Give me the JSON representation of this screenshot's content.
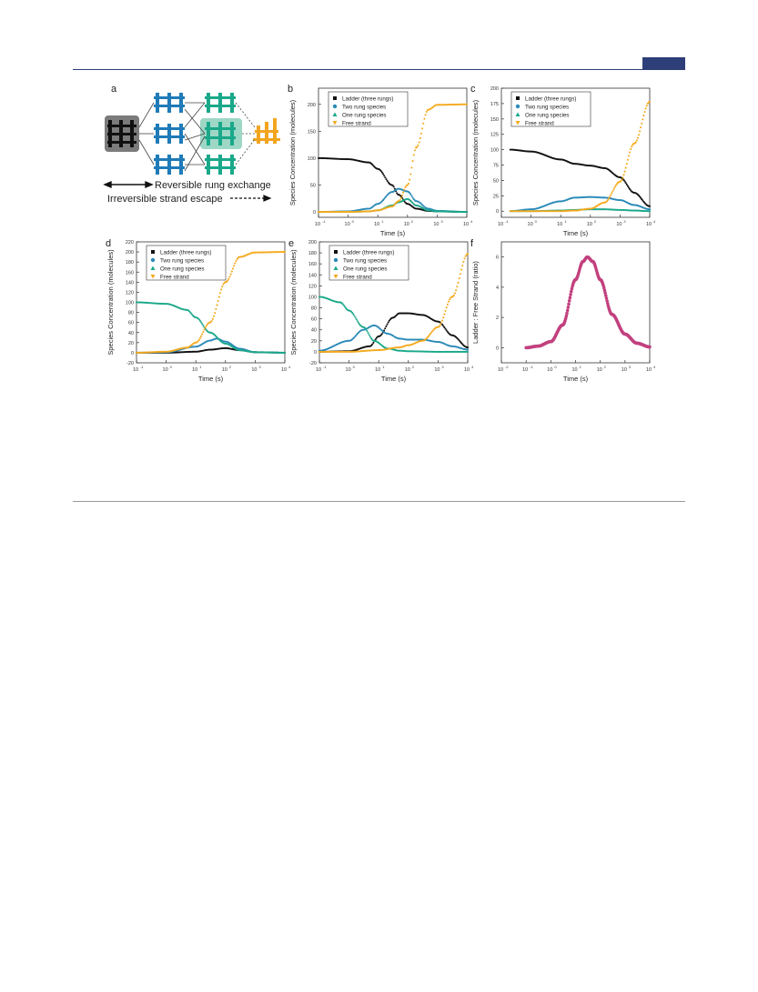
{
  "page": {
    "header_rule_color": "#2d3e78",
    "tab_color": "#2d3e78"
  },
  "panel_a": {
    "label": "a",
    "legend_reversible": "Reversible rung exchange",
    "legend_irreversible": "Irreversible strand escape",
    "colors": {
      "ladder": "#111111",
      "two": "#1f7bb8",
      "one": "#1aa88a",
      "free": "#f2a51f"
    }
  },
  "legend_labels": [
    "Ladder (three rungs)",
    "Two rung species",
    "One rung species",
    "Free strand"
  ],
  "colors": {
    "ladder": "#111111",
    "two": "#2a8ab8",
    "one": "#1aa88a",
    "free": "#f5aa1e",
    "ratio": "#c2407f"
  },
  "chart_data": [
    {
      "panel": "b",
      "type": "scatter",
      "xlabel": "Time (s)",
      "ylabel": "Species Concentration (molecules)",
      "xscale": "log",
      "xlim": [
        0.1,
        10000
      ],
      "ylim": [
        -10,
        230
      ],
      "yticks": [
        0,
        50,
        100,
        150,
        200
      ],
      "legend": "top-left",
      "series": [
        {
          "name": "Ladder (three rungs)",
          "x": [
            0.1,
            1,
            5,
            10,
            30,
            50,
            100,
            200,
            500,
            1000,
            10000
          ],
          "y": [
            100,
            98,
            92,
            80,
            50,
            32,
            15,
            6,
            2,
            1,
            0
          ]
        },
        {
          "name": "Two rung species",
          "x": [
            0.1,
            1,
            5,
            10,
            30,
            50,
            100,
            200,
            500,
            1000,
            10000
          ],
          "y": [
            0,
            1,
            6,
            15,
            37,
            43,
            38,
            20,
            6,
            2,
            0
          ]
        },
        {
          "name": "One rung species",
          "x": [
            0.1,
            1,
            5,
            10,
            30,
            50,
            100,
            200,
            500,
            1000,
            10000
          ],
          "y": [
            0,
            0,
            1,
            3,
            12,
            18,
            24,
            12,
            3,
            1,
            0
          ]
        },
        {
          "name": "Free strand",
          "x": [
            0.1,
            1,
            5,
            10,
            30,
            50,
            100,
            200,
            500,
            1000,
            10000
          ],
          "y": [
            0,
            0,
            1,
            3,
            10,
            20,
            50,
            120,
            190,
            199,
            200
          ]
        }
      ]
    },
    {
      "panel": "c",
      "type": "scatter",
      "xlabel": "Time (s)",
      "ylabel": "Species Concentration (molecules)",
      "xscale": "log",
      "xlim": [
        0.1,
        10000
      ],
      "ylim": [
        -10,
        200
      ],
      "yticks": [
        0,
        25,
        50,
        75,
        100,
        125,
        150,
        175,
        200
      ],
      "legend": "top-left",
      "series": [
        {
          "name": "Ladder (three rungs)",
          "x": [
            0.2,
            1,
            10,
            30,
            100,
            300,
            1000,
            3000,
            10000
          ],
          "y": [
            100,
            97,
            84,
            77,
            74,
            70,
            55,
            30,
            8
          ]
        },
        {
          "name": "Two rung species",
          "x": [
            0.2,
            1,
            10,
            30,
            100,
            300,
            1000,
            3000,
            10000
          ],
          "y": [
            0,
            3,
            16,
            22,
            23,
            22,
            18,
            10,
            3
          ]
        },
        {
          "name": "One rung species",
          "x": [
            0.2,
            1,
            10,
            30,
            100,
            300,
            1000,
            3000,
            10000
          ],
          "y": [
            0,
            0,
            1,
            2,
            3,
            3,
            2,
            1,
            0
          ]
        },
        {
          "name": "Free strand",
          "x": [
            0.2,
            1,
            10,
            30,
            100,
            300,
            1000,
            3000,
            10000
          ],
          "y": [
            0,
            0,
            0,
            1,
            4,
            14,
            48,
            110,
            178
          ]
        }
      ]
    },
    {
      "panel": "d",
      "type": "scatter",
      "xlabel": "Time (s)",
      "ylabel": "Species Concentration (molecules)",
      "xscale": "log",
      "xlim": [
        0.1,
        10000
      ],
      "ylim": [
        -20,
        220
      ],
      "yticks": [
        -20,
        0,
        20,
        40,
        60,
        80,
        100,
        120,
        140,
        160,
        180,
        200,
        220
      ],
      "legend": "top-left",
      "series": [
        {
          "name": "Ladder (three rungs)",
          "x": [
            0.1,
            1,
            10,
            30,
            100,
            300,
            1000,
            10000
          ],
          "y": [
            0,
            0,
            2,
            6,
            9,
            5,
            1,
            0
          ]
        },
        {
          "name": "Two rung species",
          "x": [
            0.1,
            1,
            10,
            30,
            50,
            100,
            300,
            1000,
            10000
          ],
          "y": [
            0,
            1,
            12,
            24,
            28,
            22,
            8,
            1,
            0
          ]
        },
        {
          "name": "One rung species",
          "x": [
            0.1,
            1,
            5,
            10,
            30,
            100,
            300,
            1000,
            10000
          ],
          "y": [
            100,
            97,
            85,
            70,
            40,
            18,
            5,
            1,
            0
          ]
        },
        {
          "name": "Free strand",
          "x": [
            0.1,
            1,
            5,
            10,
            30,
            100,
            300,
            1000,
            10000
          ],
          "y": [
            0,
            2,
            10,
            20,
            60,
            140,
            190,
            199,
            200
          ]
        }
      ]
    },
    {
      "panel": "e",
      "type": "scatter",
      "xlabel": "Time (s)",
      "ylabel": "Species Concentration (molecules)",
      "xscale": "log",
      "xlim": [
        0.1,
        10000
      ],
      "ylim": [
        -20,
        200
      ],
      "yticks": [
        -20,
        0,
        20,
        40,
        60,
        80,
        100,
        120,
        140,
        160,
        180,
        200
      ],
      "legend": "top-left",
      "series": [
        {
          "name": "Ladder (three rungs)",
          "x": [
            0.1,
            1,
            5,
            10,
            30,
            50,
            100,
            300,
            1000,
            3000,
            10000
          ],
          "y": [
            0,
            1,
            10,
            28,
            62,
            70,
            70,
            67,
            55,
            30,
            8
          ]
        },
        {
          "name": "Two rung species",
          "x": [
            0.1,
            1,
            3,
            7,
            20,
            50,
            100,
            300,
            1000,
            3000,
            10000
          ],
          "y": [
            2,
            20,
            40,
            48,
            33,
            24,
            22,
            22,
            18,
            10,
            4
          ]
        },
        {
          "name": "One rung species",
          "x": [
            0.1,
            0.5,
            1,
            3,
            7,
            20,
            50,
            100,
            1000,
            10000
          ],
          "y": [
            100,
            90,
            75,
            45,
            20,
            6,
            2,
            1,
            0,
            0
          ]
        },
        {
          "name": "Free strand",
          "x": [
            0.1,
            1,
            10,
            50,
            100,
            300,
            1000,
            3000,
            10000
          ],
          "y": [
            0,
            0,
            3,
            8,
            12,
            20,
            45,
            100,
            178
          ]
        }
      ]
    },
    {
      "panel": "f",
      "type": "scatter",
      "xlabel": "Time (s)",
      "ylabel": "Ladder : Free Strand (ratio)",
      "xscale": "log",
      "xlim": [
        0.01,
        10000
      ],
      "ylim": [
        -1,
        7
      ],
      "yticks": [
        0,
        2,
        4,
        6
      ],
      "legend": "none",
      "series": [
        {
          "name": "",
          "x": [
            0.1,
            0.3,
            1,
            3,
            10,
            20,
            30,
            50,
            100,
            300,
            1000,
            3000,
            10000
          ],
          "y": [
            0,
            0.1,
            0.4,
            1.5,
            4.5,
            5.7,
            6,
            5.7,
            4.5,
            2.2,
            0.9,
            0.3,
            0.05
          ]
        }
      ]
    }
  ]
}
